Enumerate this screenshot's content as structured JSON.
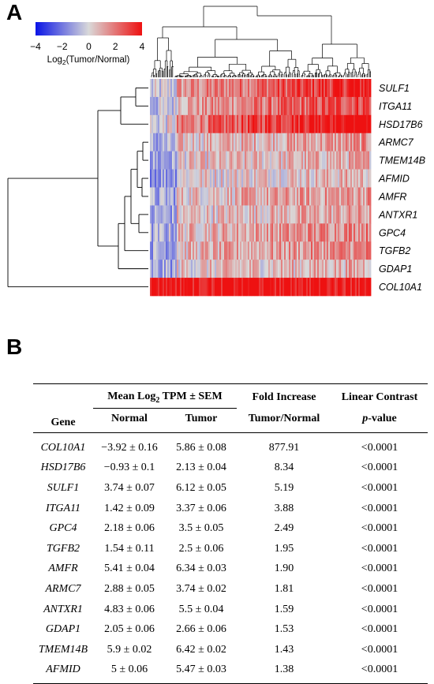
{
  "panels": {
    "a": "A",
    "b": "B"
  },
  "color_scale": {
    "ticks": [
      "−4",
      "−2",
      "0",
      "2",
      "4"
    ],
    "title_prefix": "Log",
    "title_sub": "2",
    "title_suffix": "(Tumor/Normal)",
    "low_color": "#0a14e6",
    "mid_color": "#d9d9d9",
    "high_color": "#ee1111"
  },
  "heatmap": {
    "genes": [
      "SULF1",
      "ITGA11",
      "HSD17B6",
      "ARMC7",
      "TMEM14B",
      "AFMID",
      "AMFR",
      "ANTXR1",
      "GPC4",
      "TGFB2",
      "GDAP1",
      "COL10A1"
    ],
    "mean_fold": [
      2.4,
      1.95,
      3.1,
      0.9,
      0.55,
      0.5,
      0.9,
      0.7,
      1.2,
      1.1,
      0.6,
      4.0
    ]
  },
  "table": {
    "headers": {
      "gene": "Gene",
      "mean_prefix": "Mean Log",
      "mean_sub": "2",
      "mean_suffix": " TPM ± SEM",
      "normal": "Normal",
      "tumor": "Tumor",
      "fold_top": "Fold Increase",
      "fold_bottom": "Tumor/Normal",
      "contrast_top": "Linear Contrast",
      "contrast_p": "p",
      "contrast_bottom": "-value"
    },
    "rows": [
      {
        "gene": "COL10A1",
        "normal": "−3.92 ± 0.16",
        "tumor": "5.86 ± 0.08",
        "fold": "877.91",
        "p": "<0.0001"
      },
      {
        "gene": "HSD17B6",
        "normal": "−0.93 ± 0.1",
        "tumor": "2.13 ± 0.04",
        "fold": "8.34",
        "p": "<0.0001"
      },
      {
        "gene": "SULF1",
        "normal": "3.74 ± 0.07",
        "tumor": "6.12 ± 0.05",
        "fold": "5.19",
        "p": "<0.0001"
      },
      {
        "gene": "ITGA11",
        "normal": "1.42 ± 0.09",
        "tumor": "3.37 ± 0.06",
        "fold": "3.88",
        "p": "<0.0001"
      },
      {
        "gene": "GPC4",
        "normal": "2.18 ± 0.06",
        "tumor": "3.5 ± 0.05",
        "fold": "2.49",
        "p": "<0.0001"
      },
      {
        "gene": "TGFB2",
        "normal": "1.54 ± 0.11",
        "tumor": "2.5 ± 0.06",
        "fold": "1.95",
        "p": "<0.0001"
      },
      {
        "gene": "AMFR",
        "normal": "5.41 ± 0.04",
        "tumor": "6.34 ± 0.03",
        "fold": "1.90",
        "p": "<0.0001"
      },
      {
        "gene": "ARMC7",
        "normal": "2.88 ± 0.05",
        "tumor": "3.74 ± 0.02",
        "fold": "1.81",
        "p": "<0.0001"
      },
      {
        "gene": "ANTXR1",
        "normal": "4.83 ± 0.06",
        "tumor": "5.5 ± 0.04",
        "fold": "1.59",
        "p": "<0.0001"
      },
      {
        "gene": "GDAP1",
        "normal": "2.05 ± 0.06",
        "tumor": "2.66 ± 0.06",
        "fold": "1.53",
        "p": "<0.0001"
      },
      {
        "gene": "TMEM14B",
        "normal": "5.9 ± 0.02",
        "tumor": "6.42 ± 0.02",
        "fold": "1.43",
        "p": "<0.0001"
      },
      {
        "gene": "AFMID",
        "normal": "5 ± 0.06",
        "tumor": "5.47 ± 0.03",
        "fold": "1.38",
        "p": "<0.0001"
      }
    ]
  }
}
